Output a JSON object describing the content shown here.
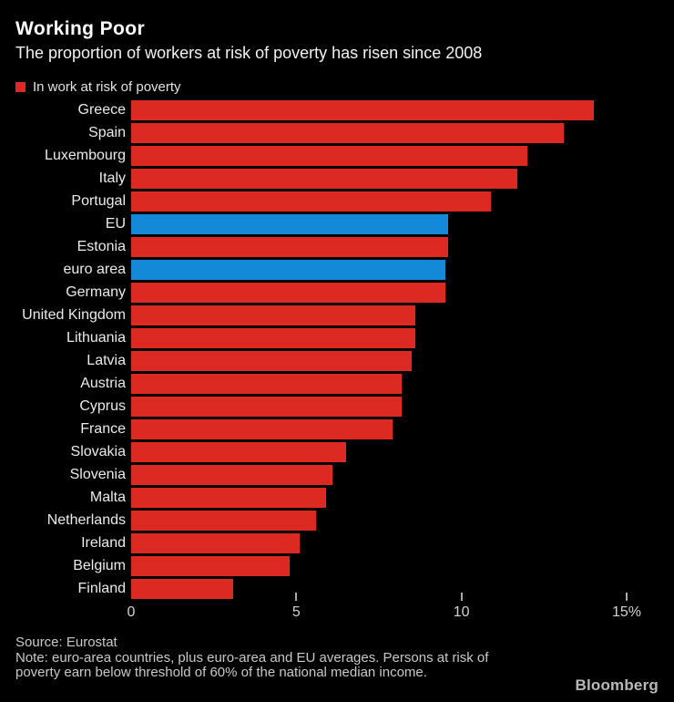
{
  "header": {
    "title": "Working Poor",
    "subtitle": "The proportion of workers at risk of poverty has risen since 2008"
  },
  "legend": {
    "label": "In work at risk of poverty",
    "swatch_color": "#dc2a23"
  },
  "chart_data": {
    "type": "bar",
    "orientation": "horizontal",
    "title": "Working Poor",
    "subtitle": "The proportion of workers at risk of poverty has risen since 2008",
    "legend_entries": [
      "In work at risk of poverty"
    ],
    "categories": [
      "Greece",
      "Spain",
      "Luxembourg",
      "Italy",
      "Portugal",
      "EU",
      "Estonia",
      "euro area",
      "Germany",
      "United Kingdom",
      "Lithuania",
      "Latvia",
      "Austria",
      "Cyprus",
      "France",
      "Slovakia",
      "Slovenia",
      "Malta",
      "Netherlands",
      "Ireland",
      "Belgium",
      "Finland"
    ],
    "values": [
      14.0,
      13.1,
      12.0,
      11.7,
      10.9,
      9.6,
      9.6,
      9.5,
      9.5,
      8.6,
      8.6,
      8.5,
      8.2,
      8.2,
      7.9,
      6.5,
      6.1,
      5.9,
      5.6,
      5.1,
      4.8,
      3.1
    ],
    "unit": "%",
    "xlim": [
      0,
      15
    ],
    "x_ticks": [
      0,
      5,
      10,
      15
    ],
    "x_tick_labels": [
      "0",
      "5",
      "10",
      "15%"
    ],
    "grid": false,
    "legend_position": "top-left",
    "colors": {
      "default_bar": "#dc2a23",
      "highlight_bar": "#1389d8",
      "highlighted_categories": [
        "EU",
        "euro area"
      ],
      "background": "#000000",
      "text": "#ebebeb"
    }
  },
  "footer": {
    "source": "Source: Eurostat",
    "note_lines": [
      "Note: euro-area countries, plus euro-area and EU averages. Persons at risk of",
      "poverty earn below threshold of 60% of the national median income."
    ],
    "brand": "Bloomberg"
  }
}
